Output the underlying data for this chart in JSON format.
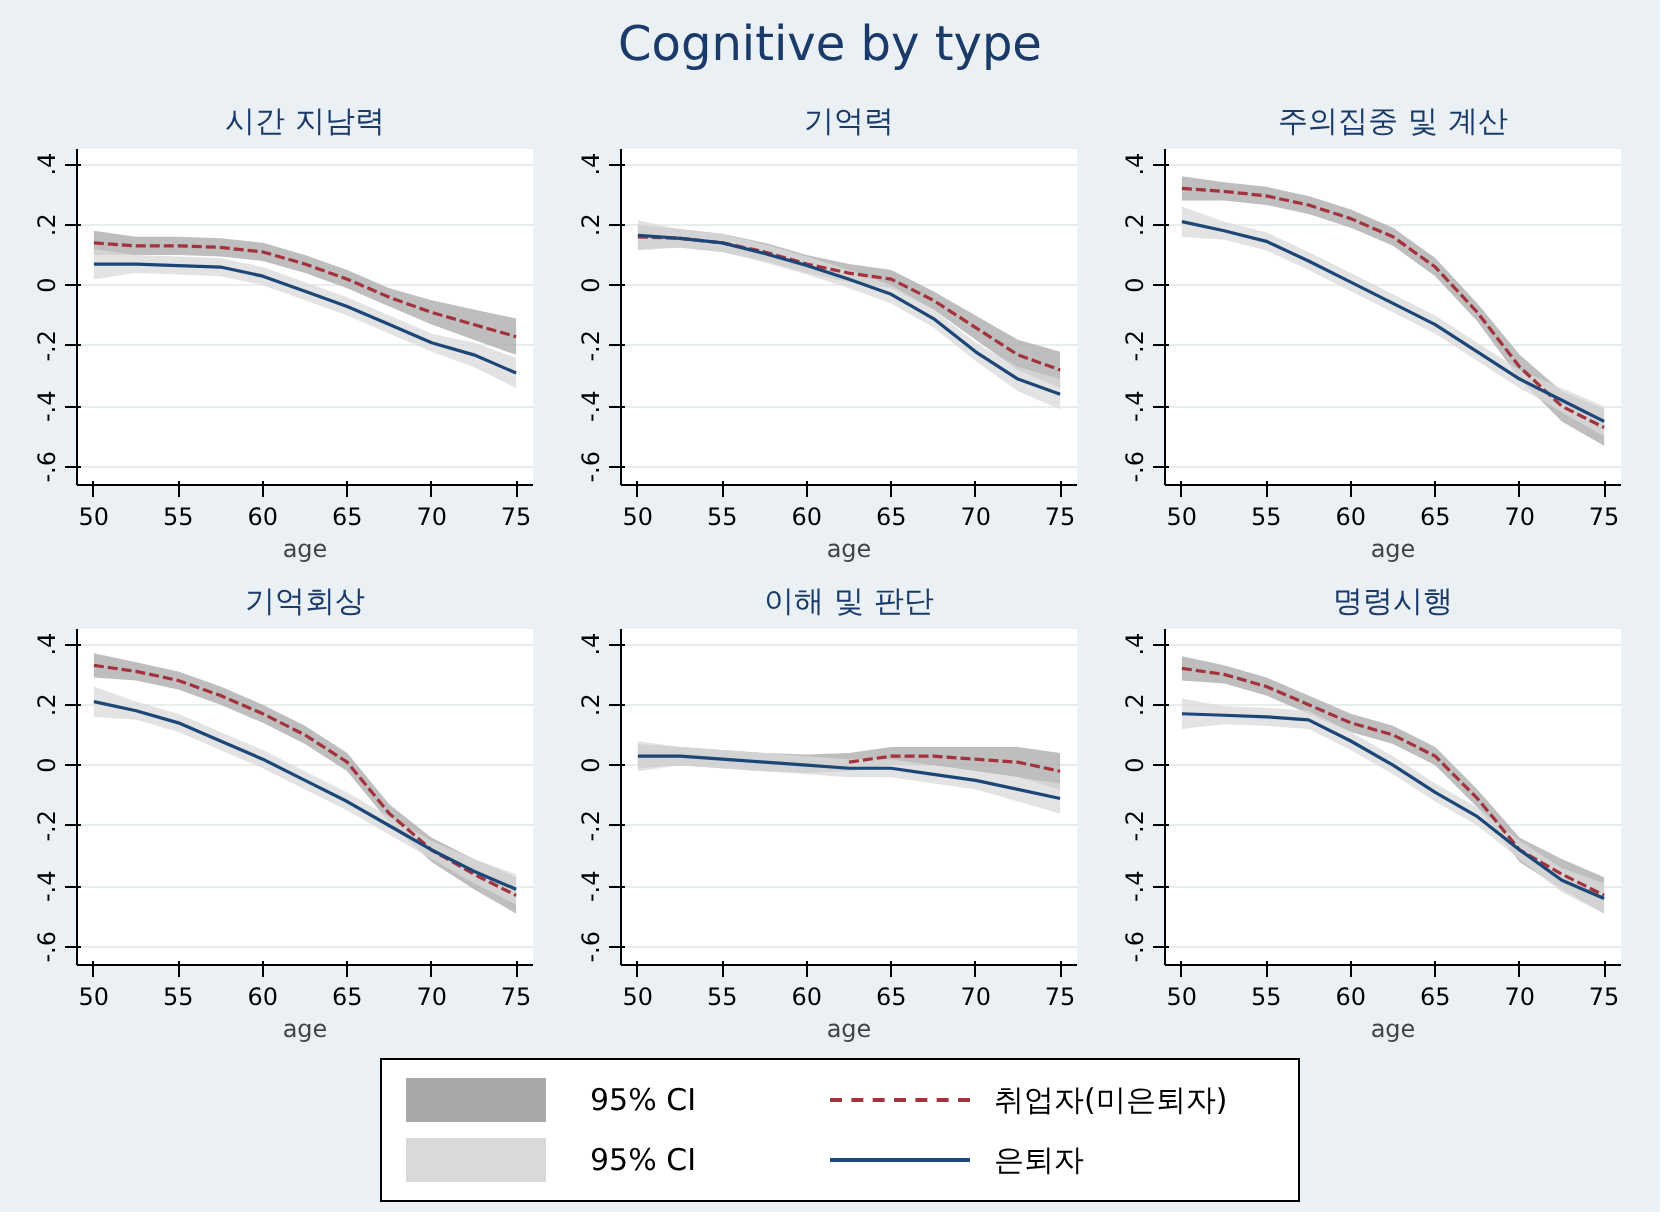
{
  "chart_data": [
    {
      "type": "other",
      "title": "Cognitive by type"
    },
    {
      "type": "line",
      "title": "시간 지남력",
      "xlabel": "age",
      "x": [
        50,
        52.5,
        55,
        57.5,
        60,
        62.5,
        65,
        67.5,
        70,
        72.5,
        75
      ],
      "xlim": [
        49,
        76
      ],
      "ylim": [
        -0.66,
        0.45
      ],
      "xticks": [
        50,
        55,
        60,
        65,
        70,
        75
      ],
      "yticks": [
        {
          "value": 0.4,
          "label": ".4"
        },
        {
          "value": 0.2,
          "label": ".2"
        },
        {
          "value": 0,
          "label": "0"
        },
        {
          "value": -0.2,
          "label": "-.2"
        },
        {
          "value": -0.4,
          "label": "-.4"
        },
        {
          "value": -0.6,
          "label": "-.6"
        }
      ],
      "grid": "y",
      "legend": "bottom",
      "annotations": [
        "95% CI",
        "95% CI"
      ],
      "series": [
        {
          "name": "취업자(미은퇴자)",
          "color": "#a3323c",
          "line_style": "dashed",
          "values": [
            0.14,
            0.13,
            0.13,
            0.125,
            0.11,
            0.07,
            0.02,
            -0.04,
            -0.09,
            -0.13,
            -0.17
          ],
          "lower": [
            0.1,
            0.1,
            0.1,
            0.095,
            0.08,
            0.04,
            -0.01,
            -0.07,
            -0.13,
            -0.18,
            -0.23
          ],
          "upper": [
            0.18,
            0.16,
            0.16,
            0.155,
            0.14,
            0.1,
            0.05,
            -0.01,
            -0.05,
            -0.08,
            -0.11
          ]
        },
        {
          "name": "은퇴자",
          "color": "#1b4677",
          "line_style": "solid",
          "values": [
            0.07,
            0.07,
            0.065,
            0.06,
            0.03,
            -0.02,
            -0.07,
            -0.13,
            -0.19,
            -0.23,
            -0.29
          ],
          "lower": [
            0.02,
            0.04,
            0.035,
            0.03,
            0.0,
            -0.05,
            -0.1,
            -0.16,
            -0.22,
            -0.27,
            -0.34
          ],
          "upper": [
            0.12,
            0.1,
            0.095,
            0.09,
            0.06,
            0.01,
            -0.04,
            -0.1,
            -0.16,
            -0.19,
            -0.24
          ]
        }
      ]
    },
    {
      "type": "line",
      "title": "기억력",
      "xlabel": "age",
      "x": [
        50,
        52.5,
        55,
        57.5,
        60,
        62.5,
        65,
        67.5,
        70,
        72.5,
        75
      ],
      "xlim": [
        49,
        76
      ],
      "ylim": [
        -0.66,
        0.45
      ],
      "xticks": [
        50,
        55,
        60,
        65,
        70,
        75
      ],
      "yticks": [
        {
          "value": 0.4,
          "label": ".4"
        },
        {
          "value": 0.2,
          "label": ".2"
        },
        {
          "value": 0,
          "label": "0"
        },
        {
          "value": -0.2,
          "label": "-.2"
        },
        {
          "value": -0.4,
          "label": "-.4"
        },
        {
          "value": -0.6,
          "label": "-.6"
        }
      ],
      "grid": "y",
      "series": [
        {
          "color": "#a3323c",
          "line_style": "dashed",
          "values": [
            0.16,
            0.155,
            0.14,
            0.11,
            0.07,
            0.04,
            0.02,
            -0.05,
            -0.14,
            -0.23,
            -0.28
          ],
          "lower": [
            0.12,
            0.125,
            0.11,
            0.08,
            0.04,
            0.01,
            -0.01,
            -0.08,
            -0.18,
            -0.28,
            -0.34
          ],
          "upper": [
            0.2,
            0.185,
            0.17,
            0.14,
            0.1,
            0.07,
            0.05,
            -0.02,
            -0.1,
            -0.18,
            -0.22
          ]
        },
        {
          "color": "#1b4677",
          "line_style": "solid",
          "values": [
            0.165,
            0.155,
            0.14,
            0.105,
            0.065,
            0.02,
            -0.03,
            -0.11,
            -0.22,
            -0.31,
            -0.36
          ],
          "lower": [
            0.115,
            0.125,
            0.11,
            0.075,
            0.035,
            -0.01,
            -0.06,
            -0.14,
            -0.25,
            -0.35,
            -0.41
          ],
          "upper": [
            0.215,
            0.185,
            0.17,
            0.135,
            0.095,
            0.05,
            0.0,
            -0.08,
            -0.19,
            -0.27,
            -0.31
          ]
        }
      ]
    },
    {
      "type": "line",
      "title": "주의집중 및 계산",
      "xlabel": "age",
      "x": [
        50,
        52.5,
        55,
        57.5,
        60,
        62.5,
        65,
        67.5,
        70,
        72.5,
        75
      ],
      "xlim": [
        49,
        76
      ],
      "ylim": [
        -0.66,
        0.45
      ],
      "xticks": [
        50,
        55,
        60,
        65,
        70,
        75
      ],
      "yticks": [
        {
          "value": 0.4,
          "label": ".4"
        },
        {
          "value": 0.2,
          "label": ".2"
        },
        {
          "value": 0,
          "label": "0"
        },
        {
          "value": -0.2,
          "label": "-.2"
        },
        {
          "value": -0.4,
          "label": "-.4"
        },
        {
          "value": -0.6,
          "label": "-.6"
        }
      ],
      "grid": "y",
      "series": [
        {
          "color": "#a3323c",
          "line_style": "dashed",
          "values": [
            0.32,
            0.31,
            0.295,
            0.265,
            0.22,
            0.16,
            0.06,
            -0.09,
            -0.27,
            -0.4,
            -0.47
          ],
          "lower": [
            0.28,
            0.28,
            0.265,
            0.235,
            0.19,
            0.13,
            0.03,
            -0.12,
            -0.31,
            -0.45,
            -0.53
          ],
          "upper": [
            0.36,
            0.34,
            0.325,
            0.295,
            0.25,
            0.19,
            0.09,
            -0.06,
            -0.23,
            -0.35,
            -0.41
          ]
        },
        {
          "color": "#1b4677",
          "line_style": "solid",
          "values": [
            0.21,
            0.18,
            0.145,
            0.08,
            0.01,
            -0.06,
            -0.13,
            -0.22,
            -0.31,
            -0.38,
            -0.45
          ],
          "lower": [
            0.16,
            0.15,
            0.115,
            0.05,
            -0.02,
            -0.09,
            -0.16,
            -0.25,
            -0.34,
            -0.42,
            -0.5
          ],
          "upper": [
            0.26,
            0.21,
            0.175,
            0.11,
            0.04,
            -0.03,
            -0.1,
            -0.19,
            -0.28,
            -0.34,
            -0.4
          ]
        }
      ]
    },
    {
      "type": "line",
      "title": "기억회상",
      "xlabel": "age",
      "x": [
        50,
        52.5,
        55,
        57.5,
        60,
        62.5,
        65,
        67.5,
        70,
        72.5,
        75
      ],
      "xlim": [
        49,
        76
      ],
      "ylim": [
        -0.66,
        0.45
      ],
      "xticks": [
        50,
        55,
        60,
        65,
        70,
        75
      ],
      "yticks": [
        {
          "value": 0.4,
          "label": ".4"
        },
        {
          "value": 0.2,
          "label": ".2"
        },
        {
          "value": 0,
          "label": "0"
        },
        {
          "value": -0.2,
          "label": "-.2"
        },
        {
          "value": -0.4,
          "label": "-.4"
        },
        {
          "value": -0.6,
          "label": "-.6"
        }
      ],
      "grid": "y",
      "series": [
        {
          "color": "#a3323c",
          "line_style": "dashed",
          "values": [
            0.33,
            0.31,
            0.28,
            0.23,
            0.17,
            0.1,
            0.01,
            -0.16,
            -0.28,
            -0.36,
            -0.43
          ],
          "lower": [
            0.29,
            0.28,
            0.25,
            0.2,
            0.14,
            0.07,
            -0.02,
            -0.19,
            -0.32,
            -0.41,
            -0.49
          ],
          "upper": [
            0.37,
            0.34,
            0.31,
            0.26,
            0.2,
            0.13,
            0.04,
            -0.13,
            -0.24,
            -0.31,
            -0.37
          ]
        },
        {
          "color": "#1b4677",
          "line_style": "solid",
          "values": [
            0.21,
            0.18,
            0.14,
            0.08,
            0.02,
            -0.05,
            -0.12,
            -0.2,
            -0.28,
            -0.35,
            -0.41
          ],
          "lower": [
            0.16,
            0.15,
            0.11,
            0.05,
            -0.01,
            -0.08,
            -0.15,
            -0.23,
            -0.31,
            -0.39,
            -0.46
          ],
          "upper": [
            0.26,
            0.21,
            0.17,
            0.11,
            0.05,
            -0.02,
            -0.09,
            -0.17,
            -0.25,
            -0.31,
            -0.36
          ]
        }
      ]
    },
    {
      "type": "line",
      "title": "이해 및 판단",
      "xlabel": "age",
      "x": [
        50,
        52.5,
        55,
        57.5,
        60,
        62.5,
        65,
        67.5,
        70,
        72.5,
        75
      ],
      "xlim": [
        49,
        76
      ],
      "ylim": [
        -0.66,
        0.45
      ],
      "xticks": [
        50,
        55,
        60,
        65,
        70,
        75
      ],
      "yticks": [
        {
          "value": 0.4,
          "label": ".4"
        },
        {
          "value": 0.2,
          "label": ".2"
        },
        {
          "value": 0,
          "label": "0"
        },
        {
          "value": -0.2,
          "label": "-.2"
        },
        {
          "value": -0.4,
          "label": "-.4"
        },
        {
          "value": -0.6,
          "label": "-.6"
        }
      ],
      "grid": "y",
      "series": [
        {
          "color": "#a3323c",
          "line_style": "dashed",
          "values": [
            null,
            null,
            null,
            null,
            null,
            0.01,
            0.03,
            0.03,
            0.02,
            0.01,
            -0.02
          ],
          "lower": [
            -0.01,
            0.0,
            -0.01,
            -0.02,
            -0.025,
            -0.02,
            0.0,
            0.0,
            -0.02,
            -0.04,
            -0.08
          ],
          "upper": [
            0.07,
            0.06,
            0.05,
            0.04,
            0.035,
            0.04,
            0.06,
            0.06,
            0.06,
            0.06,
            0.04
          ]
        },
        {
          "color": "#1b4677",
          "line_style": "solid",
          "values": [
            0.03,
            0.03,
            0.02,
            0.01,
            0.0,
            -0.01,
            -0.01,
            -0.03,
            -0.05,
            -0.08,
            -0.11
          ],
          "lower": [
            -0.02,
            0.0,
            -0.01,
            -0.02,
            -0.03,
            -0.04,
            -0.04,
            -0.06,
            -0.08,
            -0.12,
            -0.16
          ],
          "upper": [
            0.08,
            0.06,
            0.05,
            0.04,
            0.03,
            0.02,
            0.02,
            0.0,
            -0.02,
            -0.04,
            -0.06
          ]
        }
      ]
    },
    {
      "type": "line",
      "title": "명령시행",
      "xlabel": "age",
      "x": [
        50,
        52.5,
        55,
        57.5,
        60,
        62.5,
        65,
        67.5,
        70,
        72.5,
        75
      ],
      "xlim": [
        49,
        76
      ],
      "ylim": [
        -0.66,
        0.45
      ],
      "xticks": [
        50,
        55,
        60,
        65,
        70,
        75
      ],
      "yticks": [
        {
          "value": 0.4,
          "label": ".4"
        },
        {
          "value": 0.2,
          "label": ".2"
        },
        {
          "value": 0,
          "label": "0"
        },
        {
          "value": -0.2,
          "label": "-.2"
        },
        {
          "value": -0.4,
          "label": "-.4"
        },
        {
          "value": -0.6,
          "label": "-.6"
        }
      ],
      "grid": "y",
      "series": [
        {
          "color": "#a3323c",
          "line_style": "dashed",
          "values": [
            0.32,
            0.3,
            0.26,
            0.2,
            0.14,
            0.1,
            0.03,
            -0.11,
            -0.28,
            -0.36,
            -0.43
          ],
          "lower": [
            0.28,
            0.27,
            0.23,
            0.17,
            0.11,
            0.07,
            0.0,
            -0.14,
            -0.32,
            -0.41,
            -0.49
          ],
          "upper": [
            0.36,
            0.33,
            0.29,
            0.23,
            0.17,
            0.13,
            0.06,
            -0.08,
            -0.24,
            -0.31,
            -0.37
          ]
        },
        {
          "color": "#1b4677",
          "line_style": "solid",
          "values": [
            0.17,
            0.165,
            0.16,
            0.15,
            0.08,
            0.0,
            -0.09,
            -0.17,
            -0.28,
            -0.38,
            -0.44
          ],
          "lower": [
            0.12,
            0.135,
            0.13,
            0.12,
            0.05,
            -0.03,
            -0.12,
            -0.2,
            -0.31,
            -0.42,
            -0.49
          ],
          "upper": [
            0.22,
            0.195,
            0.19,
            0.18,
            0.11,
            0.03,
            -0.06,
            -0.14,
            -0.25,
            -0.34,
            -0.39
          ]
        }
      ]
    }
  ]
}
